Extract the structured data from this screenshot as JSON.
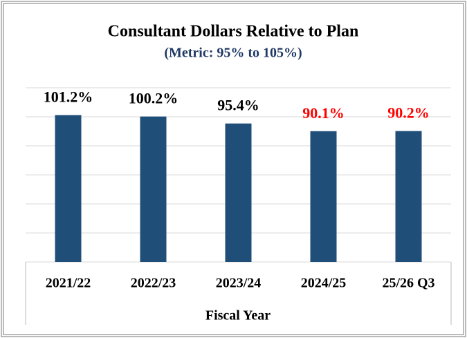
{
  "chart_data": {
    "type": "bar",
    "title": "Consultant Dollars Relative to Plan",
    "subtitle": "(Metric: 95% to 105%)",
    "x_label": "Fiscal Year",
    "categories": [
      "2021/22",
      "2022/23",
      "2023/24",
      "2024/25",
      "25/26 Q3"
    ],
    "values": [
      101.2,
      100.2,
      95.4,
      90.1,
      90.2
    ],
    "value_labels": [
      "101.2%",
      "100.2%",
      "95.4%",
      "90.1%",
      "90.2%"
    ],
    "label_colors": [
      "#000000",
      "#000000",
      "#000000",
      "#ff0000",
      "#ff0000"
    ],
    "color": "#1f4e79",
    "ylim": [
      0,
      120
    ],
    "yticks": [
      0,
      20,
      40,
      60,
      80,
      100,
      120
    ],
    "grid": true
  }
}
